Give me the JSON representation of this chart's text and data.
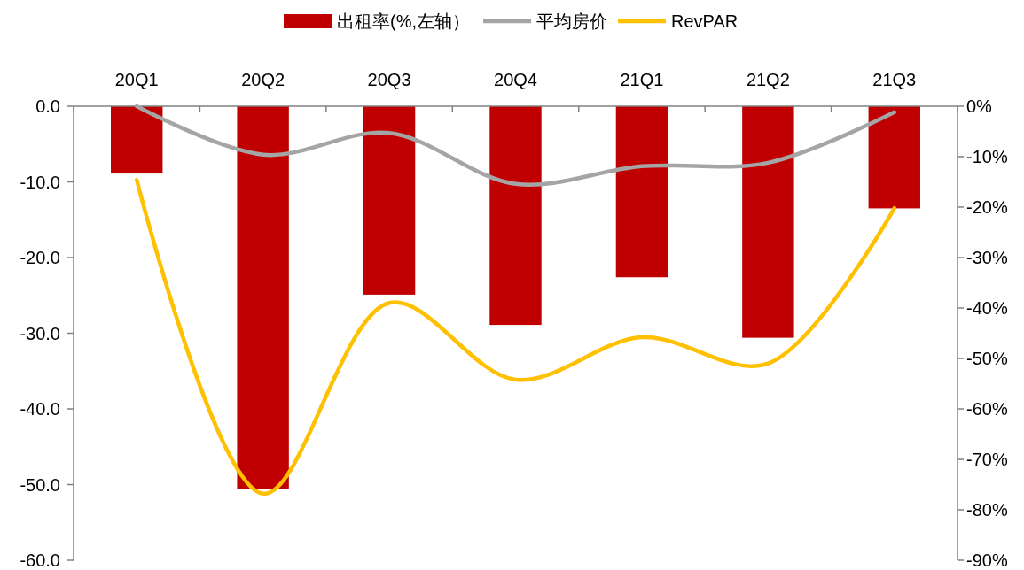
{
  "chart_data": {
    "type": "bar",
    "categories": [
      "20Q1",
      "20Q2",
      "20Q3",
      "20Q4",
      "21Q1",
      "21Q2",
      "21Q3"
    ],
    "series": [
      {
        "name": "出租率(%,左轴）",
        "color": "#c00000",
        "values": [
          -8.9,
          -50.6,
          -24.9,
          -28.9,
          -22.6,
          -30.6,
          -13.5
        ]
      },
      {
        "name": "平均房价",
        "type": "line",
        "axis": "y2",
        "color": "#a5a5a5",
        "values": [
          0,
          -9.6,
          -5.3,
          -15.4,
          -11.9,
          -11.2,
          -1.2
        ]
      },
      {
        "name": "RevPAR",
        "type": "line",
        "axis": "y2",
        "color": "#ffc000",
        "values": [
          -14.6,
          -76.8,
          -39,
          -54.2,
          -45.8,
          -51,
          -20.2
        ]
      }
    ],
    "ylim": [
      -60,
      0
    ],
    "yticks": [
      {
        "value": 0,
        "label": "0.0"
      },
      {
        "value": -10,
        "label": "-10.0"
      },
      {
        "value": -20,
        "label": "-20.0"
      },
      {
        "value": -30,
        "label": "-30.0"
      },
      {
        "value": -40,
        "label": "-40.0"
      },
      {
        "value": -50,
        "label": "-50.0"
      },
      {
        "value": -60,
        "label": "-60.0"
      }
    ],
    "y2lim": [
      -90,
      0
    ],
    "y2ticks": [
      {
        "value": 0,
        "label": "0%"
      },
      {
        "value": -10,
        "label": "-10%"
      },
      {
        "value": -20,
        "label": "-20%"
      },
      {
        "value": -30,
        "label": "-30%"
      },
      {
        "value": -40,
        "label": "-40%"
      },
      {
        "value": -50,
        "label": "-50%"
      },
      {
        "value": -60,
        "label": "-60%"
      },
      {
        "value": -70,
        "label": "-70%"
      },
      {
        "value": -80,
        "label": "-80%"
      },
      {
        "value": -90,
        "label": "-90%"
      }
    ],
    "legend": "top",
    "grid": false,
    "marker": "none",
    "line_style": "solid"
  }
}
